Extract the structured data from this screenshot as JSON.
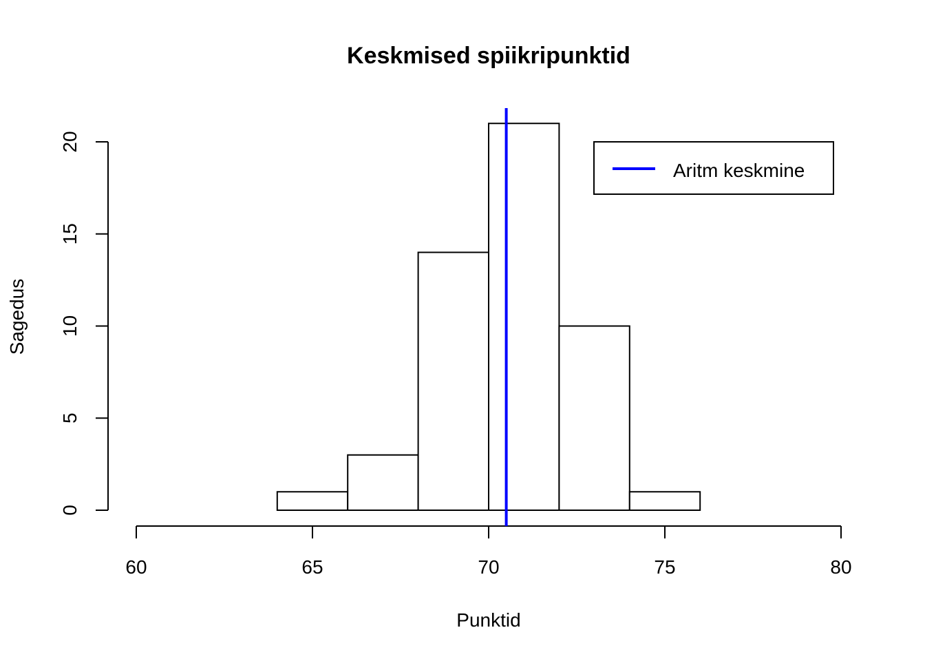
{
  "chart_data": {
    "type": "bar",
    "title": "Keskmised spiikripunktid",
    "xlabel": "Punktid",
    "ylabel": "Sagedus",
    "xlim": [
      60,
      80
    ],
    "ylim": [
      0,
      21
    ],
    "x_ticks": [
      60,
      65,
      70,
      75,
      80
    ],
    "y_ticks": [
      0,
      5,
      10,
      15,
      20
    ],
    "bins": [
      {
        "from": 64,
        "to": 66,
        "count": 1
      },
      {
        "from": 66,
        "to": 68,
        "count": 3
      },
      {
        "from": 68,
        "to": 70,
        "count": 14
      },
      {
        "from": 70,
        "to": 72,
        "count": 21
      },
      {
        "from": 72,
        "to": 74,
        "count": 10
      },
      {
        "from": 74,
        "to": 76,
        "count": 1
      }
    ],
    "mean_line": {
      "x": 70.5,
      "label": "Aritm keskmine",
      "color": "#0000ff"
    },
    "legend": {
      "position": "top-right",
      "entries": [
        "Aritm keskmine"
      ]
    },
    "grid": false
  }
}
